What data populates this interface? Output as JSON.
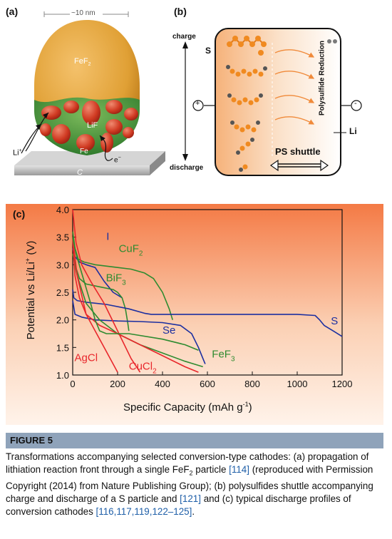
{
  "panel_a": {
    "label": "(a)",
    "scale": "~10 nm",
    "particle": "FeF",
    "particle_sub": "2",
    "shell": "LiF",
    "grain": "Fe",
    "li": "Li",
    "li_sup": "+",
    "substrate": "C",
    "electron": "e",
    "electron_sup": "−"
  },
  "panel_b": {
    "label": "(b)",
    "charge": "charge",
    "discharge": "discharge",
    "sulfur": "S",
    "lithium": "Li",
    "reduction": "Polysulfide Reduction",
    "shuttle": "PS shuttle",
    "plus": "+",
    "minus": "-"
  },
  "chart_data": {
    "type": "line",
    "label": "(c)",
    "xlabel": "Specific Capacity (mAh g",
    "xlabel_sup": "-1",
    "xlabel_end": ")",
    "ylabel": "Potential vs Li/Li",
    "ylabel_sup": "+",
    "ylabel_end": " (V)",
    "xlim": [
      0,
      1200
    ],
    "ylim": [
      1.0,
      4.0
    ],
    "xticks": [
      0,
      200,
      400,
      600,
      800,
      1000,
      1200
    ],
    "yticks": [
      1.0,
      1.5,
      2.0,
      2.5,
      3.0,
      3.5,
      4.0
    ],
    "colors": {
      "red": "#e8262b",
      "green": "#2e8b30",
      "blue": "#1c2fa0"
    },
    "series": [
      {
        "name": "I",
        "sub": "",
        "color": "#1c2fa0",
        "x": [
          0,
          10,
          30,
          60,
          100,
          140,
          180,
          220
        ],
        "y": [
          3.3,
          3.15,
          3.05,
          3.0,
          2.95,
          2.7,
          2.5,
          2.4
        ]
      },
      {
        "name": "CuF",
        "sub": "2",
        "color": "#2e8b30",
        "x": [
          0,
          10,
          25,
          50,
          100,
          200,
          260,
          320,
          360,
          400,
          430,
          445
        ],
        "y": [
          3.6,
          3.3,
          3.1,
          3.05,
          3.0,
          2.95,
          2.92,
          2.85,
          2.75,
          2.5,
          2.2,
          2.0
        ]
      },
      {
        "name": "BiF",
        "sub": "3",
        "color": "#2e8b30",
        "x": [
          0,
          10,
          30,
          60,
          120,
          180,
          200,
          220,
          235,
          245,
          250
        ],
        "y": [
          3.5,
          3.0,
          2.75,
          2.65,
          2.6,
          2.55,
          2.5,
          2.4,
          2.2,
          1.95,
          1.8
        ]
      },
      {
        "name": "S",
        "sub": "",
        "color": "#1c2fa0",
        "x": [
          0,
          5,
          20,
          60,
          150,
          250,
          320,
          350,
          400,
          600,
          800,
          1000,
          1080,
          1100,
          1120,
          1160,
          1200
        ],
        "y": [
          2.55,
          2.4,
          2.35,
          2.32,
          2.28,
          2.2,
          2.12,
          2.1,
          2.1,
          2.1,
          2.1,
          2.1,
          2.08,
          2.0,
          1.9,
          1.8,
          1.7
        ]
      },
      {
        "name": "Se",
        "sub": "",
        "color": "#1c2fa0",
        "x": [
          0,
          10,
          40,
          100,
          200,
          300,
          400,
          480,
          530,
          560,
          580,
          590
        ],
        "y": [
          2.35,
          2.1,
          2.05,
          2.0,
          1.98,
          1.97,
          1.95,
          1.9,
          1.75,
          1.5,
          1.3,
          1.2
        ]
      },
      {
        "name": "FeF",
        "sub": "3",
        "color": "#2e8b30",
        "x": [
          0,
          20,
          60,
          120,
          200,
          300,
          400,
          500,
          580
        ],
        "y": [
          3.2,
          2.8,
          2.3,
          2.0,
          1.75,
          1.55,
          1.4,
          1.25,
          1.15
        ]
      },
      {
        "name": "AgCl",
        "sub": "",
        "color": "#e8262b",
        "x": [
          0,
          10,
          30,
          60,
          100,
          140,
          180,
          200
        ],
        "y": [
          3.5,
          2.8,
          2.4,
          2.1,
          1.8,
          1.5,
          1.2,
          1.05
        ]
      },
      {
        "name": "CuCl",
        "sub": "2",
        "color": "#e8262b",
        "x": [
          0,
          20,
          60,
          120,
          200,
          300,
          400,
          500,
          560
        ],
        "y": [
          3.5,
          2.8,
          2.1,
          1.9,
          1.75,
          1.55,
          1.35,
          1.15,
          1.05
        ]
      },
      {
        "name": "",
        "sub": "",
        "color": "#e8262b",
        "x": [
          0,
          15,
          40,
          80,
          140,
          200,
          260,
          300
        ],
        "y": [
          4.0,
          3.4,
          3.0,
          2.7,
          2.3,
          1.8,
          1.3,
          1.05
        ]
      },
      {
        "name": "",
        "sub": "",
        "color": "#2e8b30",
        "x": [
          0,
          15,
          40,
          80,
          100,
          120,
          150,
          250,
          400,
          500,
          560
        ],
        "y": [
          3.5,
          3.2,
          2.85,
          2.3,
          2.0,
          1.8,
          1.75,
          1.75,
          1.65,
          1.55,
          1.45
        ]
      }
    ]
  },
  "figure": {
    "label": "FIGURE 5",
    "caption_part1": "Transformations accompanying selected conversion-type cathodes: (a) propagation of lithiation reaction front through a single FeF",
    "caption_sub": "2",
    "caption_part2": " particle ",
    "ref1": "[114]",
    "caption_part3": " (reproduced with Permission Copyright (2014) from Nature Publishing Group); (b) polysulfides shuttle accompanying charge and discharge of a S particle and ",
    "ref2": "[121]",
    "caption_part4": " and (c) typical discharge profiles of conversion cathodes ",
    "ref3": "[116,117,119,122–125]",
    "caption_part5": "."
  }
}
